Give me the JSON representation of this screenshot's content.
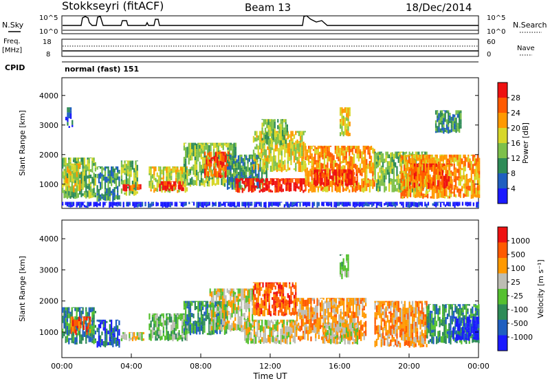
{
  "header": {
    "station": "Stokkseyri (fitACF)",
    "beam": "Beam 13",
    "date": "18/Dec/2014"
  },
  "summary": {
    "nsky_label": "N.Sky",
    "nsearch_label": "N.Search",
    "freq_label": "Freq.",
    "freq_unit": "[MHz]",
    "nave_label": "Nave",
    "cpid_label": "CPID",
    "cpid_value": "normal (fast) 151",
    "noise_ticks": {
      "top": "10^5",
      "bottom": "10^0"
    },
    "freq_ticks": [
      "18",
      "8"
    ],
    "nave_ticks": [
      "60",
      "0"
    ]
  },
  "chart_data": [
    {
      "type": "heatmap",
      "name": "power",
      "xlabel": "",
      "ylabel": "Slant Range [km]",
      "xlim": [
        0,
        24
      ],
      "ylim": [
        180,
        4600
      ],
      "yticks": [
        1000,
        2000,
        3000,
        4000
      ],
      "colorbar": {
        "label": "Power [dB]",
        "ticks": [
          "28",
          "24",
          "20",
          "16",
          "12",
          "8",
          "4"
        ],
        "colors": [
          "#1a1aff",
          "#1f5fc0",
          "#2e8b57",
          "#7dc04a",
          "#d7d72a",
          "#ff9900",
          "#ff5a00",
          "#ee1111"
        ]
      },
      "regions": [
        {
          "t0": 0.0,
          "t1": 1.9,
          "r0": 500,
          "r1": 1900,
          "level": 3
        },
        {
          "t0": 0.1,
          "t1": 1.0,
          "r0": 700,
          "r1": 1700,
          "level": 4
        },
        {
          "t0": 0.2,
          "t1": 0.6,
          "r0": 2900,
          "r1": 3600,
          "level": 1
        },
        {
          "t0": 2.0,
          "t1": 3.3,
          "r0": 400,
          "r1": 1600,
          "level": 2
        },
        {
          "t0": 3.4,
          "t1": 4.3,
          "r0": 600,
          "r1": 1800,
          "level": 3
        },
        {
          "t0": 3.5,
          "t1": 4.7,
          "r0": 750,
          "r1": 1000,
          "level": 6
        },
        {
          "t0": 5.0,
          "t1": 7.2,
          "r0": 700,
          "r1": 1600,
          "level": 4
        },
        {
          "t0": 5.6,
          "t1": 7.0,
          "r0": 750,
          "r1": 1100,
          "level": 7
        },
        {
          "t0": 7.0,
          "t1": 10.0,
          "r0": 900,
          "r1": 2400,
          "level": 3
        },
        {
          "t0": 8.2,
          "t1": 9.6,
          "r0": 1200,
          "r1": 2100,
          "level": 6
        },
        {
          "t0": 9.5,
          "t1": 11.8,
          "r0": 800,
          "r1": 2000,
          "level": 2
        },
        {
          "t0": 10.0,
          "t1": 14.0,
          "r0": 700,
          "r1": 1200,
          "level": 7
        },
        {
          "t0": 11.0,
          "t1": 14.0,
          "r0": 1400,
          "r1": 2800,
          "level": 4
        },
        {
          "t0": 11.5,
          "t1": 13.0,
          "r0": 2300,
          "r1": 3200,
          "level": 3
        },
        {
          "t0": 14.0,
          "t1": 18.0,
          "r0": 700,
          "r1": 2300,
          "level": 5
        },
        {
          "t0": 14.5,
          "t1": 17.0,
          "r0": 900,
          "r1": 1500,
          "level": 7
        },
        {
          "t0": 16.0,
          "t1": 16.6,
          "r0": 2600,
          "r1": 3600,
          "level": 4
        },
        {
          "t0": 18.0,
          "t1": 21.0,
          "r0": 700,
          "r1": 2100,
          "level": 3
        },
        {
          "t0": 19.5,
          "t1": 24.0,
          "r0": 500,
          "r1": 2000,
          "level": 5
        },
        {
          "t0": 20.0,
          "t1": 22.5,
          "r0": 800,
          "r1": 1700,
          "level": 6
        },
        {
          "t0": 21.5,
          "t1": 23.0,
          "r0": 2700,
          "r1": 3500,
          "level": 2
        },
        {
          "t0": 0.0,
          "t1": 24.0,
          "r0": 200,
          "r1": 400,
          "level": 0
        }
      ]
    },
    {
      "type": "heatmap",
      "name": "velocity",
      "xlabel": "Time UT",
      "ylabel": "Slant Range [km]",
      "xlim": [
        0,
        24
      ],
      "ylim": [
        180,
        4600
      ],
      "yticks": [
        1000,
        2000,
        3000,
        4000
      ],
      "xticks": [
        "00:00",
        "04:00",
        "08:00",
        "12:00",
        "16:00",
        "20:00",
        "00:00"
      ],
      "colorbar": {
        "label": "Velocity [m s⁻¹]",
        "ticks": [
          "1000",
          "500",
          "100",
          "25",
          "-25",
          "-100",
          "-500",
          "-1000"
        ],
        "colors": [
          "#1a1aff",
          "#1f5fc0",
          "#2e8b57",
          "#55c030",
          "#bdbdb3",
          "#ff9900",
          "#ff5a00",
          "#ee1111"
        ]
      },
      "regions": [
        {
          "t0": 0.0,
          "t1": 1.9,
          "r0": 600,
          "r1": 1800,
          "level": 2
        },
        {
          "t0": 0.5,
          "t1": 1.6,
          "r0": 900,
          "r1": 1500,
          "level": 6
        },
        {
          "t0": 2.0,
          "t1": 3.3,
          "r0": 500,
          "r1": 1400,
          "level": 1
        },
        {
          "t0": 3.4,
          "t1": 4.7,
          "r0": 700,
          "r1": 1000,
          "level": 4
        },
        {
          "t0": 5.0,
          "t1": 7.2,
          "r0": 700,
          "r1": 1600,
          "level": 3
        },
        {
          "t0": 7.0,
          "t1": 9.5,
          "r0": 900,
          "r1": 2000,
          "level": 2
        },
        {
          "t0": 8.5,
          "t1": 11.0,
          "r0": 1000,
          "r1": 2400,
          "level": 4
        },
        {
          "t0": 10.5,
          "t1": 13.5,
          "r0": 600,
          "r1": 1400,
          "level": 4
        },
        {
          "t0": 11.0,
          "t1": 13.5,
          "r0": 1500,
          "r1": 2600,
          "level": 6
        },
        {
          "t0": 13.5,
          "t1": 17.5,
          "r0": 700,
          "r1": 2100,
          "level": 5
        },
        {
          "t0": 15.0,
          "t1": 17.0,
          "r0": 600,
          "r1": 1300,
          "level": 4
        },
        {
          "t0": 18.0,
          "t1": 21.0,
          "r0": 500,
          "r1": 2000,
          "level": 5
        },
        {
          "t0": 21.0,
          "t1": 24.0,
          "r0": 600,
          "r1": 1900,
          "level": 2
        },
        {
          "t0": 22.5,
          "t1": 24.0,
          "r0": 700,
          "r1": 1500,
          "level": 0
        },
        {
          "t0": 16.0,
          "t1": 16.5,
          "r0": 2700,
          "r1": 3500,
          "level": 3
        }
      ]
    }
  ]
}
